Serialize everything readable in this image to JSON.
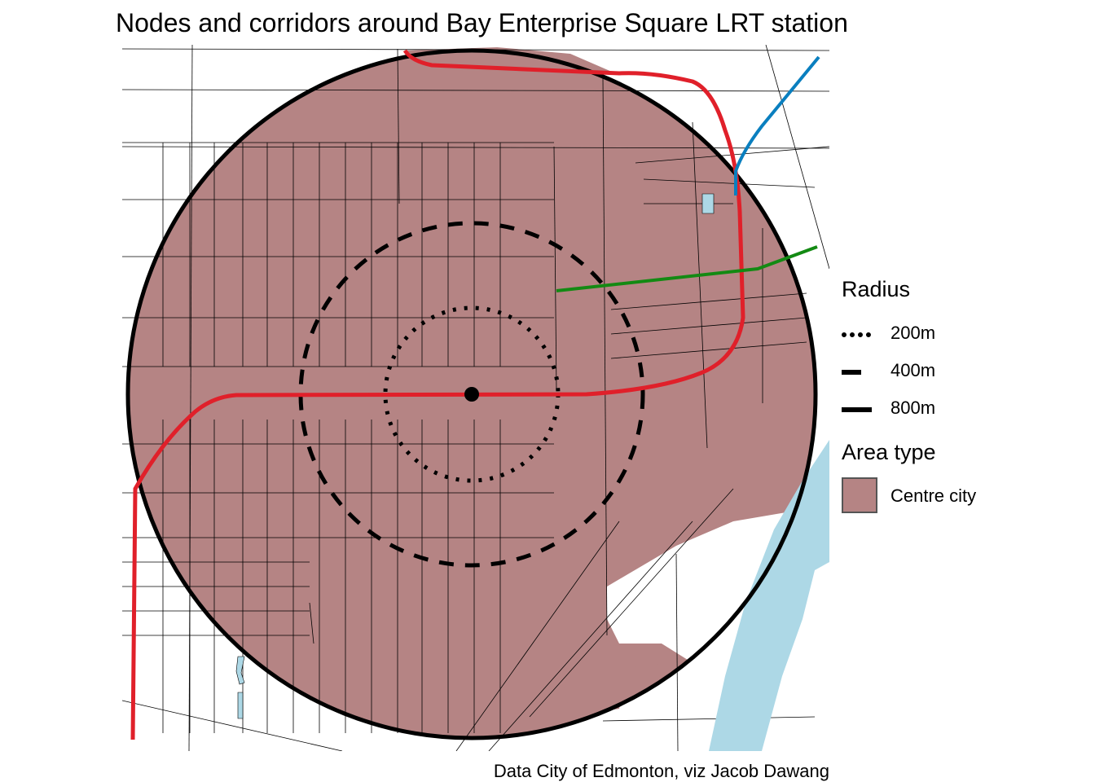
{
  "title": "Nodes and corridors around Bay Enterprise Square LRT station",
  "caption": "Data City of Edmonton, viz Jacob Dawang",
  "legend": {
    "radius": {
      "title": "Radius",
      "items": [
        {
          "label": "200m",
          "linetype": "dotted"
        },
        {
          "label": "400m",
          "linetype": "dashed"
        },
        {
          "label": "800m",
          "linetype": "solid"
        }
      ]
    },
    "area_type": {
      "title": "Area type",
      "items": [
        {
          "label": "Centre city",
          "color": "#b58484"
        }
      ]
    }
  },
  "colors": {
    "centre_city": "#b58484",
    "water": "#add8e6",
    "lrt_red": "#e0202a",
    "lrt_blue": "#0a7fbf",
    "lrt_green": "#138a13",
    "streets": "#000000"
  },
  "map_features": {
    "station": "Bay Enterprise Square LRT station",
    "rings_m": [
      200,
      400,
      800
    ]
  }
}
